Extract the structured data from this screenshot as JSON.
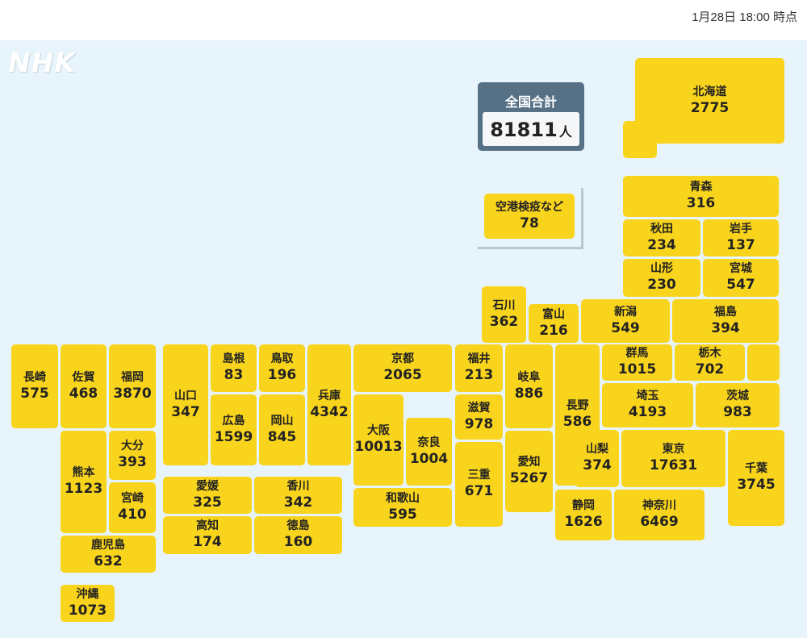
{
  "timestamp": "1月28日 18:00 時点",
  "logo": "NHK",
  "total": {
    "label": "全国合計",
    "value": "81811",
    "unit": "人"
  },
  "colors": {
    "background": "#e8f4fb",
    "tile": "#f9d41c",
    "total_box": "#567186"
  },
  "prefectures": {
    "hokkaido": {
      "name": "北海道",
      "value": "2775"
    },
    "aomori": {
      "name": "青森",
      "value": "316"
    },
    "akita": {
      "name": "秋田",
      "value": "234"
    },
    "iwate": {
      "name": "岩手",
      "value": "137"
    },
    "yamagata": {
      "name": "山形",
      "value": "230"
    },
    "miyagi": {
      "name": "宮城",
      "value": "547"
    },
    "ishikawa": {
      "name": "石川",
      "value": "362"
    },
    "toyama": {
      "name": "富山",
      "value": "216"
    },
    "niigata": {
      "name": "新潟",
      "value": "549"
    },
    "fukushima": {
      "name": "福島",
      "value": "394"
    },
    "airport": {
      "name": "空港検疫など",
      "value": "78"
    },
    "nagasaki": {
      "name": "長崎",
      "value": "575"
    },
    "saga": {
      "name": "佐賀",
      "value": "468"
    },
    "fukuoka": {
      "name": "福岡",
      "value": "3870"
    },
    "yamaguchi": {
      "name": "山口",
      "value": "347"
    },
    "shimane": {
      "name": "島根",
      "value": "83"
    },
    "tottori": {
      "name": "鳥取",
      "value": "196"
    },
    "hyogo": {
      "name": "兵庫",
      "value": "4342"
    },
    "kyoto": {
      "name": "京都",
      "value": "2065"
    },
    "fukui": {
      "name": "福井",
      "value": "213"
    },
    "gifu": {
      "name": "岐阜",
      "value": "886"
    },
    "nagano": {
      "name": "長野",
      "value": "586"
    },
    "gunma": {
      "name": "群馬",
      "value": "1015"
    },
    "tochigi": {
      "name": "栃木",
      "value": "702"
    },
    "hiroshima": {
      "name": "広島",
      "value": "1599"
    },
    "okayama": {
      "name": "岡山",
      "value": "845"
    },
    "osaka": {
      "name": "大阪",
      "value": "10013"
    },
    "nara": {
      "name": "奈良",
      "value": "1004"
    },
    "shiga": {
      "name": "滋賀",
      "value": "978"
    },
    "saitama": {
      "name": "埼玉",
      "value": "4193"
    },
    "ibaraki": {
      "name": "茨城",
      "value": "983"
    },
    "kumamoto": {
      "name": "熊本",
      "value": "1123"
    },
    "oita": {
      "name": "大分",
      "value": "393"
    },
    "miyazaki": {
      "name": "宮崎",
      "value": "410"
    },
    "mie": {
      "name": "三重",
      "value": "671"
    },
    "aichi": {
      "name": "愛知",
      "value": "5267"
    },
    "yamanashi": {
      "name": "山梨",
      "value": "374"
    },
    "tokyo": {
      "name": "東京",
      "value": "17631"
    },
    "chiba": {
      "name": "千葉",
      "value": "3745"
    },
    "ehime": {
      "name": "愛媛",
      "value": "325"
    },
    "kagawa": {
      "name": "香川",
      "value": "342"
    },
    "kochi": {
      "name": "高知",
      "value": "174"
    },
    "tokushima": {
      "name": "徳島",
      "value": "160"
    },
    "wakayama": {
      "name": "和歌山",
      "value": "595"
    },
    "shizuoka": {
      "name": "静岡",
      "value": "1626"
    },
    "kanagawa": {
      "name": "神奈川",
      "value": "6469"
    },
    "kagoshima": {
      "name": "鹿児島",
      "value": "632"
    },
    "okinawa": {
      "name": "沖縄",
      "value": "1073"
    }
  }
}
